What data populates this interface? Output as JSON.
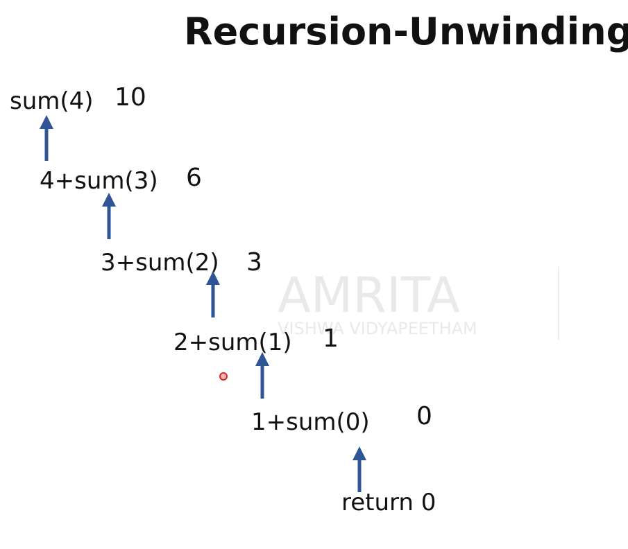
{
  "title": "Recursion-Unwinding",
  "watermark": {
    "brand": "AMRITA",
    "subtitle": "VISHWA VIDYAPEETHAM"
  },
  "nodes": [
    {
      "label": "sum(4)",
      "result": "10"
    },
    {
      "label": "4+sum(3)",
      "result": "6"
    },
    {
      "label": "3+sum(2)",
      "result": "3"
    },
    {
      "label": "2+sum(1)",
      "result": "1"
    },
    {
      "label": "1+sum(0)",
      "result": "0"
    },
    {
      "label": "return 0"
    }
  ]
}
